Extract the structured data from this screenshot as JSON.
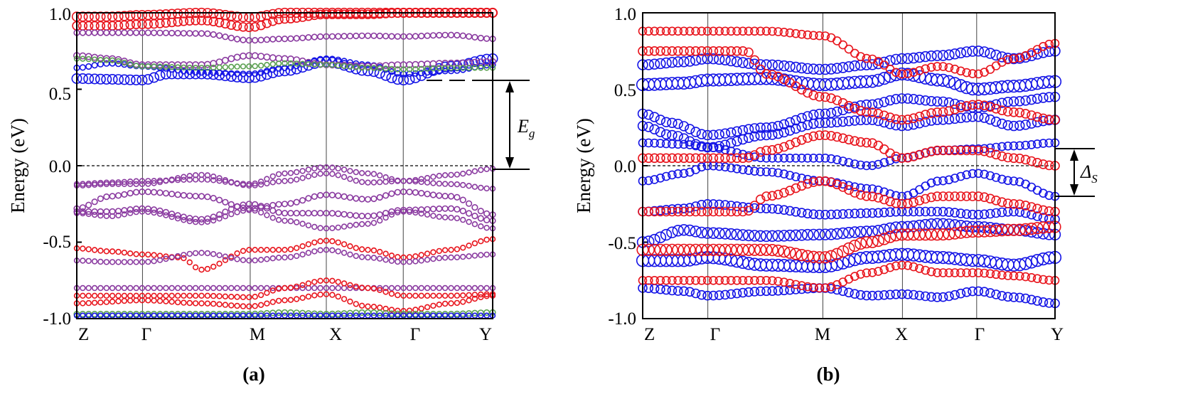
{
  "chart_data": [
    {
      "type": "scatter",
      "panel_label": "(a)",
      "ylabel": "Energy (eV)",
      "ylim": [
        -1.0,
        1.0
      ],
      "yticks": [
        -1.0,
        -0.5,
        0.0,
        0.5,
        1.0
      ],
      "ytick_labels": [
        "-1.0",
        "-0.5",
        "0.0",
        "0.5",
        "1.0"
      ],
      "x_range": [
        0,
        1
      ],
      "xticks": [
        0,
        0.158,
        0.417,
        0.6,
        0.785,
        1.0
      ],
      "xtick_labels": [
        "Z",
        "Γ",
        "M",
        "X",
        "Γ",
        "Y"
      ],
      "fermi_level": 0.0,
      "annotation": {
        "label": "E",
        "subscript": "g",
        "from": 0.0,
        "to": 0.56
      },
      "colors": {
        "red": "#e8141c",
        "blue": "#1414e6",
        "green": "#5aa050",
        "mix": "#8a3aa0"
      },
      "bands": [
        {
          "color": "red",
          "size": 1.5,
          "x": [
            0,
            0.08,
            0.158,
            0.3,
            0.417,
            0.5,
            0.6,
            0.7,
            0.785,
            0.9,
            1.0
          ],
          "y": [
            0.975,
            0.975,
            0.985,
            1.0,
            0.97,
            1.0,
            1.0,
            1.0,
            1.0,
            1.0,
            1.0
          ]
        },
        {
          "color": "red",
          "size": 1.4,
          "x": [
            0,
            0.08,
            0.158,
            0.3,
            0.417,
            0.5,
            0.6,
            0.7,
            0.785,
            0.9,
            1.0
          ],
          "y": [
            0.915,
            0.915,
            0.925,
            0.95,
            0.905,
            0.96,
            0.99,
            0.99,
            1.0,
            1.0,
            1.0
          ]
        },
        {
          "color": "mix",
          "size": 0.9,
          "x": [
            0,
            0.158,
            0.3,
            0.417,
            0.5,
            0.6,
            0.7,
            0.785,
            0.9,
            1.0
          ],
          "y": [
            0.87,
            0.87,
            0.865,
            0.82,
            0.83,
            0.845,
            0.85,
            0.845,
            0.855,
            0.83
          ]
        },
        {
          "color": "blue",
          "size": 1.6,
          "x": [
            0,
            0.08,
            0.158,
            0.22,
            0.3,
            0.417,
            0.5,
            0.6,
            0.7,
            0.785,
            0.9,
            1.0
          ],
          "y": [
            0.57,
            0.565,
            0.56,
            0.6,
            0.6,
            0.575,
            0.62,
            0.68,
            0.62,
            0.56,
            0.65,
            0.7
          ]
        },
        {
          "color": "blue",
          "size": 0.9,
          "x": [
            0,
            0.08,
            0.158,
            0.3,
            0.417,
            0.5,
            0.6,
            0.7,
            0.785,
            0.9,
            1.0
          ],
          "y": [
            0.64,
            0.67,
            0.65,
            0.61,
            0.6,
            0.64,
            0.7,
            0.66,
            0.6,
            0.62,
            0.66
          ]
        },
        {
          "color": "mix",
          "size": 1.0,
          "x": [
            0,
            0.08,
            0.158,
            0.3,
            0.417,
            0.5,
            0.6,
            0.7,
            0.785,
            0.9,
            1.0
          ],
          "y": [
            0.72,
            0.7,
            0.66,
            0.66,
            0.72,
            0.7,
            0.66,
            0.65,
            0.66,
            0.67,
            0.68
          ]
        },
        {
          "color": "green",
          "size": 0.8,
          "x": [
            0,
            0.08,
            0.158,
            0.3,
            0.417,
            0.5,
            0.6,
            0.7,
            0.785,
            0.9,
            1.0
          ],
          "y": [
            0.7,
            0.69,
            0.65,
            0.64,
            0.65,
            0.67,
            0.66,
            0.64,
            0.63,
            0.64,
            0.64
          ]
        },
        {
          "color": "mix",
          "size": 0.8,
          "x": [
            0,
            0.08,
            0.158,
            0.3,
            0.417,
            0.5,
            0.6,
            0.7,
            0.785,
            0.9,
            1.0
          ],
          "y": [
            -0.12,
            -0.11,
            -0.1,
            -0.09,
            -0.12,
            -0.05,
            -0.01,
            -0.05,
            -0.1,
            -0.06,
            -0.02
          ]
        },
        {
          "color": "mix",
          "size": 0.8,
          "x": [
            0,
            0.08,
            0.158,
            0.3,
            0.417,
            0.5,
            0.6,
            0.7,
            0.785,
            0.9,
            1.0
          ],
          "y": [
            -0.13,
            -0.12,
            -0.12,
            -0.06,
            -0.13,
            -0.1,
            -0.05,
            -0.11,
            -0.1,
            -0.12,
            -0.15
          ]
        },
        {
          "color": "mix",
          "size": 0.9,
          "x": [
            0,
            0.08,
            0.158,
            0.3,
            0.417,
            0.5,
            0.6,
            0.7,
            0.785,
            0.9,
            1.0
          ],
          "y": [
            -0.28,
            -0.2,
            -0.17,
            -0.2,
            -0.28,
            -0.25,
            -0.19,
            -0.22,
            -0.17,
            -0.2,
            -0.32
          ]
        },
        {
          "color": "mix",
          "size": 0.9,
          "x": [
            0,
            0.08,
            0.158,
            0.3,
            0.417,
            0.5,
            0.6,
            0.7,
            0.785,
            0.9,
            1.0
          ],
          "y": [
            -0.3,
            -0.3,
            -0.28,
            -0.35,
            -0.25,
            -0.31,
            -0.31,
            -0.33,
            -0.29,
            -0.28,
            -0.36
          ]
        },
        {
          "color": "mix",
          "size": 0.8,
          "x": [
            0,
            0.08,
            0.158,
            0.3,
            0.417,
            0.5,
            0.6,
            0.7,
            0.785,
            0.9,
            1.0
          ],
          "y": [
            -0.31,
            -0.33,
            -0.3,
            -0.37,
            -0.29,
            -0.36,
            -0.41,
            -0.38,
            -0.3,
            -0.34,
            -0.41
          ]
        },
        {
          "color": "red",
          "size": 0.8,
          "x": [
            0,
            0.08,
            0.158,
            0.25,
            0.3,
            0.417,
            0.5,
            0.6,
            0.7,
            0.785,
            0.9,
            1.0
          ],
          "y": [
            -0.54,
            -0.56,
            -0.58,
            -0.6,
            -0.68,
            -0.55,
            -0.55,
            -0.49,
            -0.55,
            -0.6,
            -0.55,
            -0.48
          ]
        },
        {
          "color": "mix",
          "size": 0.8,
          "x": [
            0,
            0.08,
            0.158,
            0.3,
            0.417,
            0.5,
            0.6,
            0.7,
            0.785,
            0.9,
            1.0
          ],
          "y": [
            -0.62,
            -0.63,
            -0.63,
            -0.57,
            -0.62,
            -0.6,
            -0.55,
            -0.6,
            -0.63,
            -0.6,
            -0.58
          ]
        },
        {
          "color": "mix",
          "size": 0.8,
          "x": [
            0,
            0.158,
            0.3,
            0.417,
            0.5,
            0.6,
            0.7,
            0.785,
            0.9,
            1.0
          ],
          "y": [
            -0.8,
            -0.8,
            -0.8,
            -0.8,
            -0.8,
            -0.8,
            -0.8,
            -0.8,
            -0.8,
            -0.8
          ]
        },
        {
          "color": "red",
          "size": 0.8,
          "x": [
            0,
            0.158,
            0.3,
            0.417,
            0.5,
            0.6,
            0.7,
            0.785,
            0.9,
            1.0
          ],
          "y": [
            -0.85,
            -0.85,
            -0.85,
            -0.86,
            -0.8,
            -0.75,
            -0.8,
            -0.85,
            -0.85,
            -0.84
          ]
        },
        {
          "color": "red",
          "size": 0.8,
          "x": [
            0,
            0.158,
            0.3,
            0.417,
            0.5,
            0.6,
            0.7,
            0.785,
            0.9,
            1.0
          ],
          "y": [
            -0.9,
            -0.88,
            -0.9,
            -0.92,
            -0.88,
            -0.84,
            -0.92,
            -0.95,
            -0.9,
            -0.85
          ]
        },
        {
          "color": "green",
          "size": 0.9,
          "x": [
            0,
            0.158,
            0.3,
            0.417,
            0.5,
            0.6,
            0.7,
            0.785,
            0.9,
            1.0
          ],
          "y": [
            -0.97,
            -0.97,
            -0.97,
            -0.97,
            -0.96,
            -0.97,
            -0.96,
            -0.97,
            -0.97,
            -0.96
          ]
        },
        {
          "color": "blue",
          "size": 0.8,
          "x": [
            0,
            0.158,
            0.3,
            0.417,
            0.5,
            0.6,
            0.7,
            0.785,
            0.9,
            1.0
          ],
          "y": [
            -0.98,
            -0.98,
            -0.98,
            -0.98,
            -0.98,
            -0.98,
            -0.98,
            -0.98,
            -0.98,
            -0.98
          ]
        }
      ]
    },
    {
      "type": "scatter",
      "panel_label": "(b)",
      "ylabel": "Energy (eV)",
      "ylim": [
        -1.0,
        1.0
      ],
      "yticks": [
        -1.0,
        -0.5,
        0.0,
        0.5,
        1.0
      ],
      "ytick_labels": [
        "-1.0",
        "-0.5",
        "0.0",
        "0.5",
        "1.0"
      ],
      "x_range": [
        0,
        1
      ],
      "xticks": [
        0,
        0.158,
        0.437,
        0.63,
        0.81,
        1.0
      ],
      "xtick_labels": [
        "Z",
        "Γ",
        "M",
        "X",
        "Γ",
        "Y"
      ],
      "fermi_level": 0.0,
      "annotation": {
        "label": "Δ",
        "subscript": "S",
        "from": -0.2,
        "to": 0.11
      },
      "colors": {
        "red": "#e8141c",
        "blue": "#1414e6"
      },
      "bands": [
        {
          "color": "blue",
          "size": 1.5,
          "x": [
            0,
            0.1,
            0.158,
            0.3,
            0.437,
            0.55,
            0.63,
            0.72,
            0.81,
            0.9,
            1.0
          ],
          "y": [
            0.66,
            0.68,
            0.7,
            0.66,
            0.63,
            0.66,
            0.7,
            0.72,
            0.75,
            0.7,
            0.75
          ]
        },
        {
          "color": "blue",
          "size": 1.8,
          "x": [
            0,
            0.1,
            0.158,
            0.3,
            0.437,
            0.55,
            0.63,
            0.72,
            0.81,
            0.9,
            1.0
          ],
          "y": [
            0.53,
            0.54,
            0.56,
            0.57,
            0.53,
            0.55,
            0.6,
            0.56,
            0.5,
            0.52,
            0.55
          ]
        },
        {
          "color": "blue",
          "size": 1.4,
          "x": [
            0,
            0.07,
            0.158,
            0.3,
            0.437,
            0.55,
            0.63,
            0.72,
            0.81,
            0.9,
            1.0
          ],
          "y": [
            0.34,
            0.28,
            0.2,
            0.25,
            0.34,
            0.4,
            0.44,
            0.42,
            0.38,
            0.42,
            0.45
          ]
        },
        {
          "color": "blue",
          "size": 1.4,
          "x": [
            0,
            0.07,
            0.158,
            0.3,
            0.437,
            0.55,
            0.63,
            0.72,
            0.81,
            0.9,
            1.0
          ],
          "y": [
            0.26,
            0.2,
            0.12,
            0.2,
            0.28,
            0.3,
            0.26,
            0.3,
            0.32,
            0.26,
            0.3
          ]
        },
        {
          "color": "blue",
          "size": 1.2,
          "x": [
            0,
            0.1,
            0.158,
            0.3,
            0.437,
            0.55,
            0.63,
            0.72,
            0.81,
            0.9,
            1.0
          ],
          "y": [
            0.15,
            0.14,
            0.12,
            0.05,
            0.05,
            0.0,
            0.05,
            0.1,
            0.11,
            0.13,
            0.15
          ]
        },
        {
          "color": "blue",
          "size": 1.2,
          "x": [
            0,
            0.1,
            0.158,
            0.3,
            0.437,
            0.55,
            0.63,
            0.72,
            0.81,
            0.9,
            1.0
          ],
          "y": [
            -0.1,
            -0.05,
            0.0,
            -0.04,
            -0.1,
            -0.15,
            -0.2,
            -0.1,
            -0.05,
            -0.1,
            -0.2
          ]
        },
        {
          "color": "blue",
          "size": 1.3,
          "x": [
            0,
            0.1,
            0.158,
            0.3,
            0.437,
            0.55,
            0.63,
            0.72,
            0.81,
            0.9,
            1.0
          ],
          "y": [
            -0.3,
            -0.28,
            -0.25,
            -0.28,
            -0.32,
            -0.31,
            -0.3,
            -0.3,
            -0.32,
            -0.3,
            -0.35
          ]
        },
        {
          "color": "blue",
          "size": 1.6,
          "x": [
            0,
            0.1,
            0.158,
            0.3,
            0.437,
            0.55,
            0.63,
            0.72,
            0.81,
            0.9,
            1.0
          ],
          "y": [
            -0.5,
            -0.42,
            -0.44,
            -0.46,
            -0.45,
            -0.43,
            -0.4,
            -0.38,
            -0.4,
            -0.42,
            -0.45
          ]
        },
        {
          "color": "blue",
          "size": 1.8,
          "x": [
            0,
            0.1,
            0.158,
            0.3,
            0.437,
            0.55,
            0.63,
            0.72,
            0.81,
            0.9,
            1.0
          ],
          "y": [
            -0.62,
            -0.62,
            -0.6,
            -0.65,
            -0.66,
            -0.6,
            -0.58,
            -0.6,
            -0.62,
            -0.65,
            -0.6
          ]
        },
        {
          "color": "blue",
          "size": 1.3,
          "x": [
            0,
            0.1,
            0.158,
            0.3,
            0.437,
            0.55,
            0.63,
            0.72,
            0.81,
            0.9,
            1.0
          ],
          "y": [
            -0.8,
            -0.82,
            -0.85,
            -0.82,
            -0.8,
            -0.85,
            -0.84,
            -0.86,
            -0.82,
            -0.86,
            -0.9
          ]
        },
        {
          "color": "red",
          "size": 1.3,
          "x": [
            0.25,
            0.3,
            0.437,
            0.55,
            0.63,
            0.72,
            0.81,
            0.9,
            1.0
          ],
          "y": [
            0.75,
            0.6,
            0.45,
            0.35,
            0.3,
            0.35,
            0.4,
            0.35,
            0.3
          ]
        },
        {
          "color": "red",
          "size": 1.3,
          "x": [
            0.25,
            0.3,
            0.437,
            0.55,
            0.63,
            0.72,
            0.81,
            0.9,
            1.0
          ],
          "y": [
            0.05,
            0.1,
            0.2,
            0.15,
            0.05,
            0.1,
            0.1,
            0.05,
            0.0
          ]
        },
        {
          "color": "red",
          "size": 1.3,
          "x": [
            0.25,
            0.3,
            0.437,
            0.55,
            0.63,
            0.72,
            0.81,
            0.9,
            1.0
          ],
          "y": [
            -0.3,
            -0.2,
            -0.1,
            -0.2,
            -0.25,
            -0.2,
            -0.2,
            -0.25,
            -0.3
          ]
        },
        {
          "color": "red",
          "size": 1.7,
          "x": [
            0.3,
            0.437,
            0.55,
            0.63,
            0.72,
            0.81,
            0.9,
            1.0
          ],
          "y": [
            -0.55,
            -0.6,
            -0.5,
            -0.45,
            -0.45,
            -0.43,
            -0.42,
            -0.4
          ]
        },
        {
          "color": "red",
          "size": 1.2,
          "x": [
            0.3,
            0.437,
            0.55,
            0.63,
            0.72,
            0.81,
            0.9,
            1.0
          ],
          "y": [
            -0.75,
            -0.8,
            -0.7,
            -0.65,
            -0.7,
            -0.7,
            -0.72,
            -0.75
          ]
        },
        {
          "color": "red",
          "size": 1.2,
          "x": [
            0.3,
            0.437,
            0.55,
            0.63,
            0.72,
            0.81,
            0.9,
            1.0
          ],
          "y": [
            0.88,
            0.85,
            0.7,
            0.6,
            0.65,
            0.6,
            0.7,
            0.8
          ]
        }
      ]
    }
  ]
}
